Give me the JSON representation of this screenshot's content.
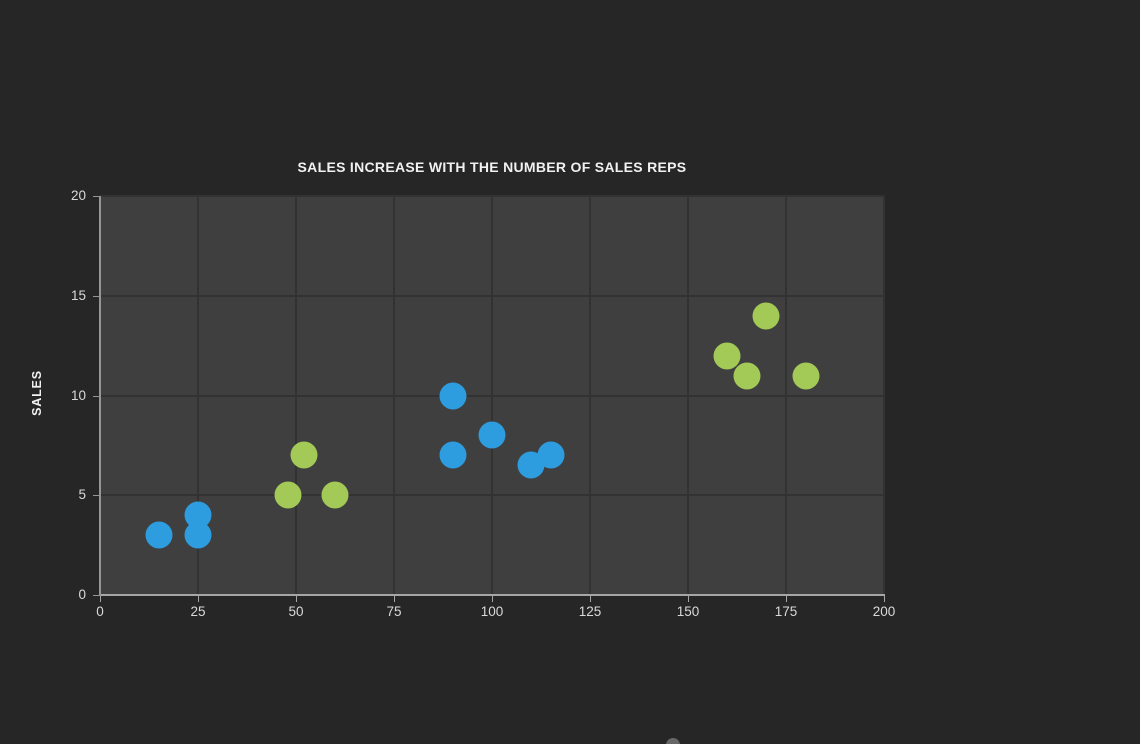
{
  "chart_data": {
    "type": "scatter",
    "title": "SALES INCREASE WITH THE NUMBER OF SALES REPS",
    "xlabel": "",
    "ylabel": "SALES",
    "xlim": [
      0,
      200
    ],
    "ylim": [
      0,
      20
    ],
    "xticks": [
      0,
      25,
      50,
      75,
      100,
      125,
      150,
      175,
      200
    ],
    "yticks": [
      0,
      5,
      10,
      15,
      20
    ],
    "grid": true,
    "legend": false,
    "series": [
      {
        "name": "blue",
        "color": "#2d9de0",
        "points": [
          [
            15,
            3
          ],
          [
            25,
            4
          ],
          [
            25,
            3
          ],
          [
            90,
            10
          ],
          [
            90,
            7
          ],
          [
            100,
            8
          ],
          [
            110,
            6.5
          ],
          [
            115,
            7
          ]
        ]
      },
      {
        "name": "green",
        "color": "#a3c957",
        "points": [
          [
            48,
            5
          ],
          [
            52,
            7
          ],
          [
            60,
            5
          ],
          [
            160,
            12
          ],
          [
            165,
            11
          ],
          [
            170,
            14
          ],
          [
            180,
            11
          ]
        ]
      }
    ],
    "colors": {
      "page_background": "#262626",
      "plot_background": "#3f3f3f",
      "gridline": "#323232",
      "axis_line": "#a6a6a6",
      "tick_label": "#d9d9d9",
      "title_text": "#f1f1f1"
    }
  }
}
